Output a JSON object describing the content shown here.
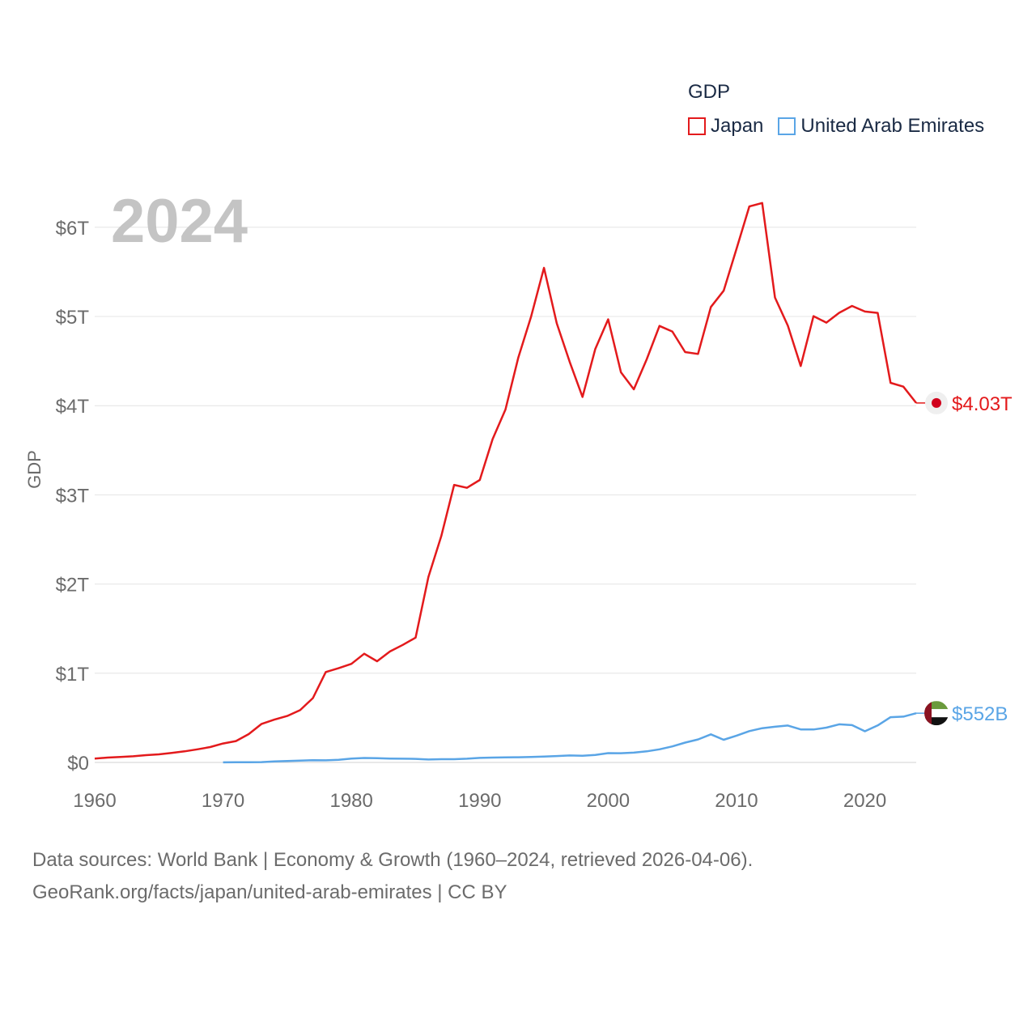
{
  "chart_data": {
    "type": "line",
    "legend_title": "GDP",
    "year_label": "2024",
    "ylabel": "GDP",
    "xlim": [
      1960,
      2024
    ],
    "ylim": [
      0,
      6.3
    ],
    "x_ticks": [
      1960,
      1970,
      1980,
      1990,
      2000,
      2010,
      2020
    ],
    "x_tick_labels": [
      "1960",
      "1970",
      "1980",
      "1990",
      "2000",
      "2010",
      "2020"
    ],
    "y_ticks": [
      0,
      1,
      2,
      3,
      4,
      5,
      6
    ],
    "y_tick_labels": [
      "$0",
      "$1T",
      "$2T",
      "$3T",
      "$4T",
      "$5T",
      "$6T"
    ],
    "y_unit": "trillion USD",
    "series": [
      {
        "name": "Japan",
        "color": "#e31a1c",
        "end_label": "$4.03T",
        "flag": "japan-flag",
        "start_year": 1960,
        "values": [
          0.044,
          0.054,
          0.061,
          0.069,
          0.082,
          0.091,
          0.106,
          0.124,
          0.147,
          0.172,
          0.212,
          0.24,
          0.318,
          0.432,
          0.48,
          0.521,
          0.586,
          0.721,
          1.014,
          1.056,
          1.105,
          1.219,
          1.134,
          1.244,
          1.318,
          1.399,
          2.079,
          2.537,
          3.112,
          3.079,
          3.167,
          3.624,
          3.956,
          4.54,
          4.999,
          5.545,
          4.923,
          4.493,
          4.098,
          4.636,
          4.968,
          4.374,
          4.183,
          4.519,
          4.894,
          4.831,
          4.601,
          4.58,
          5.106,
          5.289,
          5.759,
          6.233,
          6.272,
          5.212,
          4.897,
          4.445,
          5.004,
          4.931,
          5.041,
          5.118,
          5.055,
          5.04,
          4.256,
          4.213,
          4.03
        ]
      },
      {
        "name": "United Arab Emirates",
        "color": "#5aa5e6",
        "end_label": "$552B",
        "flag": "uae-flag",
        "start_year": 1970,
        "values": [
          0.001,
          0.0014,
          0.002,
          0.004,
          0.011,
          0.015,
          0.02,
          0.025,
          0.024,
          0.03,
          0.044,
          0.05,
          0.047,
          0.044,
          0.042,
          0.04,
          0.033,
          0.036,
          0.036,
          0.042,
          0.051,
          0.054,
          0.056,
          0.058,
          0.061,
          0.066,
          0.072,
          0.078,
          0.075,
          0.084,
          0.104,
          0.103,
          0.11,
          0.124,
          0.147,
          0.18,
          0.222,
          0.258,
          0.315,
          0.254,
          0.3,
          0.351,
          0.384,
          0.4,
          0.414,
          0.37,
          0.369,
          0.39,
          0.427,
          0.418,
          0.349,
          0.415,
          0.507,
          0.514,
          0.552
        ]
      }
    ]
  },
  "source": {
    "line1": "Data sources: World Bank | Economy & Growth (1960–2024, retrieved 2026-04-06).",
    "line2": "GeoRank.org/facts/japan/united-arab-emirates | CC BY"
  }
}
